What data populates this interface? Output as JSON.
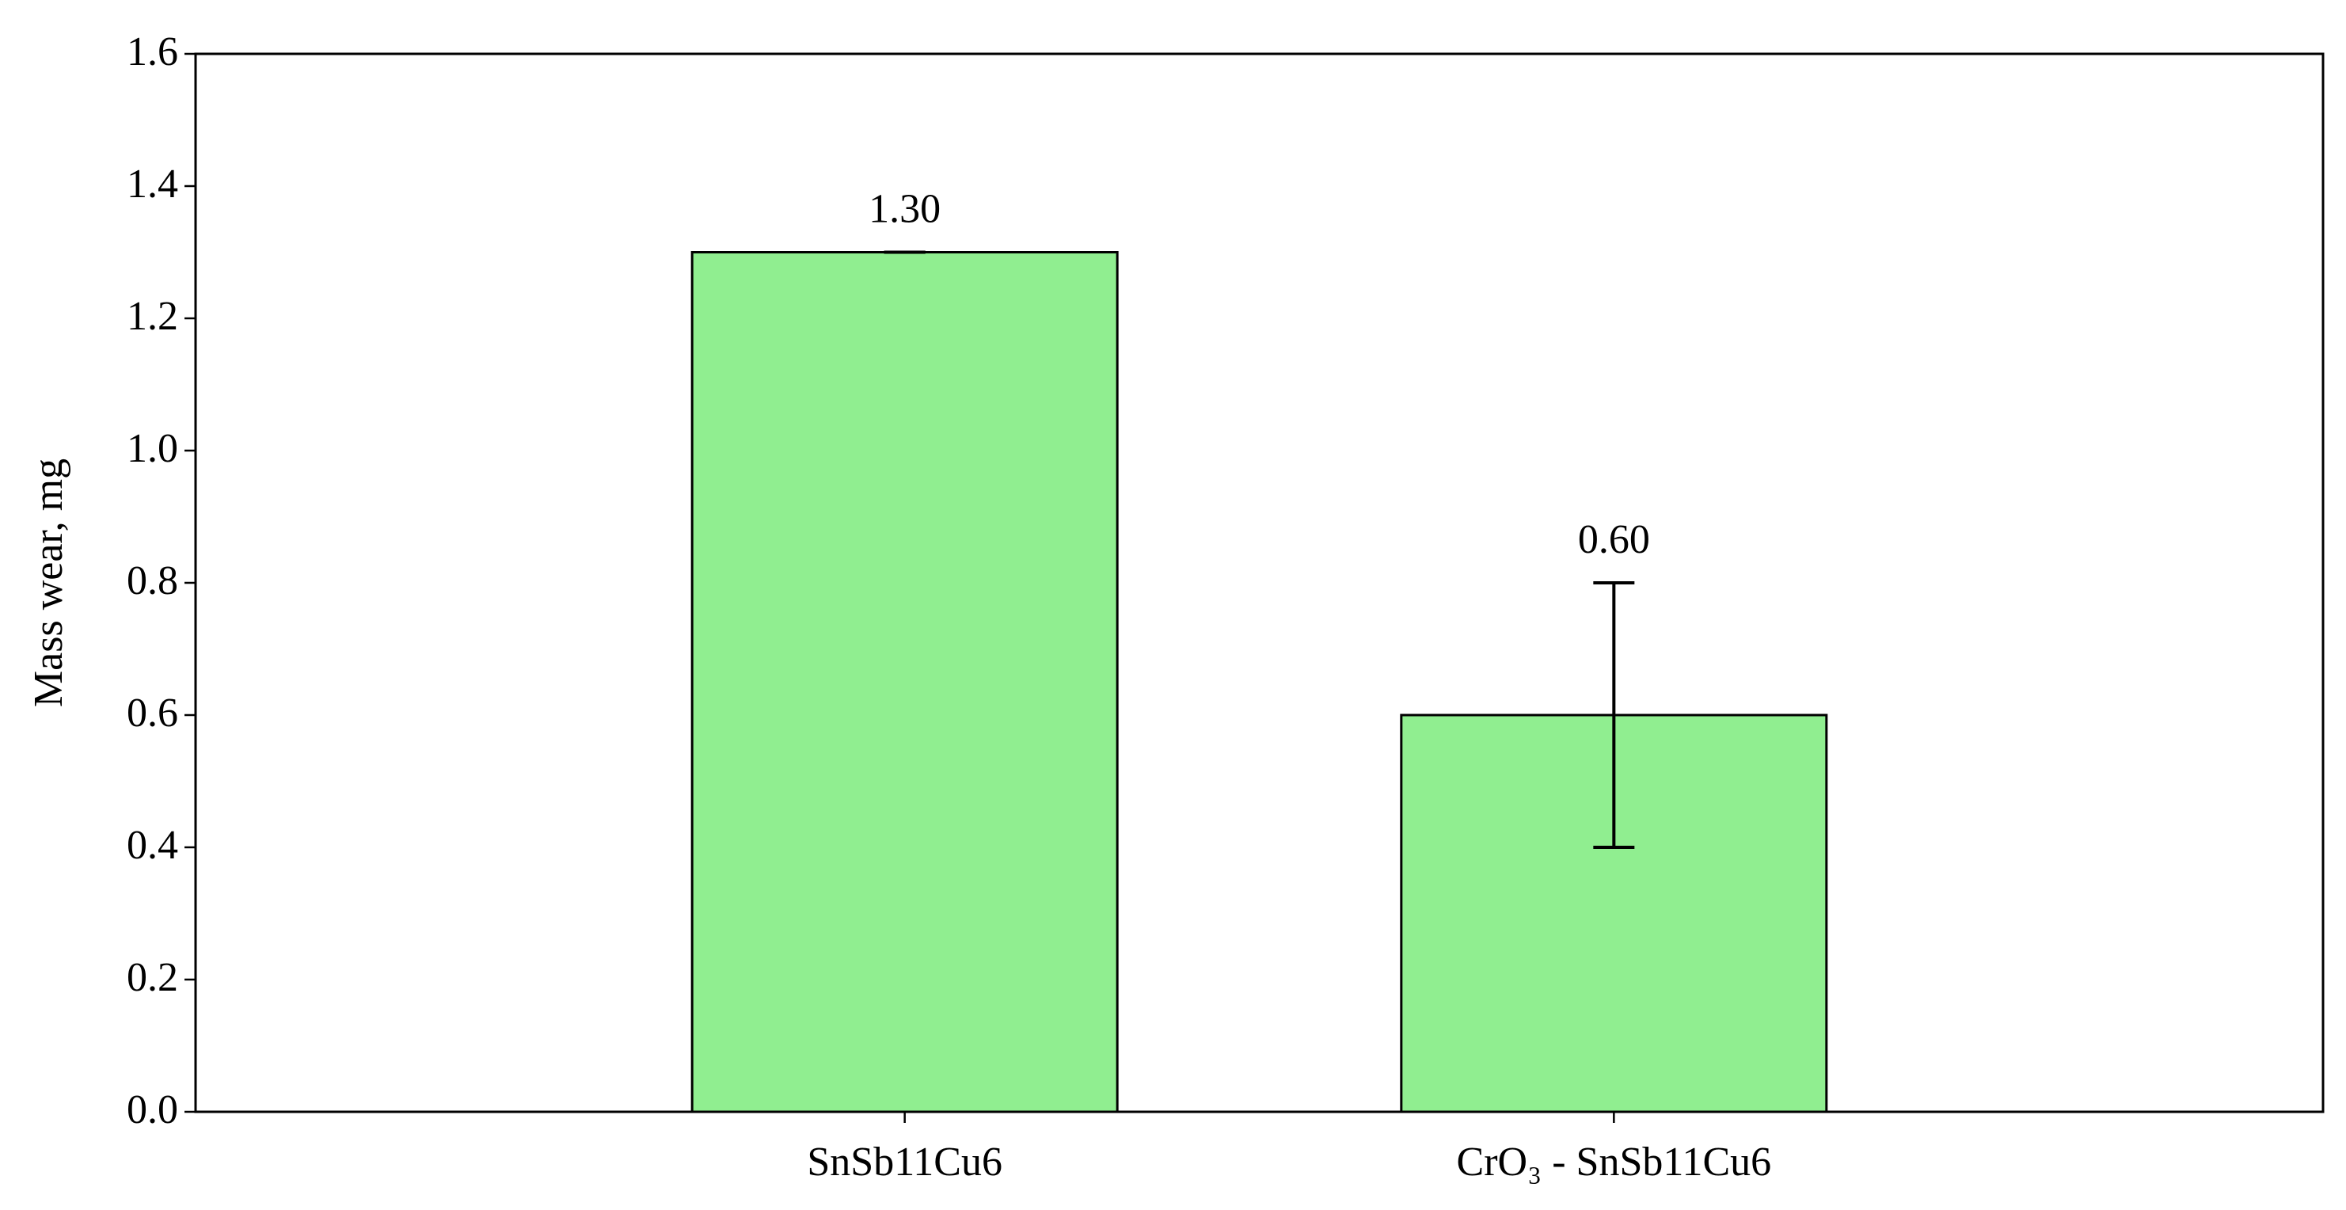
{
  "chart_data": {
    "type": "bar",
    "y_label": "Mass wear, mg",
    "categories": [
      "SnSb11Cu6",
      "CrO₃ - SnSb11Cu6"
    ],
    "values": [
      1.3,
      0.6
    ],
    "value_labels": [
      "1.30",
      "0.60"
    ],
    "errors": [
      0,
      0.2
    ],
    "color": "#90ee90",
    "edgecolor": "#000000",
    "ylim": [
      0,
      1.6
    ],
    "yticks": [
      {
        "value": 0,
        "label": "0.0"
      },
      0.2,
      0.4,
      0.6,
      0.8,
      {
        "value": 1,
        "label": "1.0"
      },
      1.2,
      1.4,
      1.6
    ],
    "grid": false
  }
}
